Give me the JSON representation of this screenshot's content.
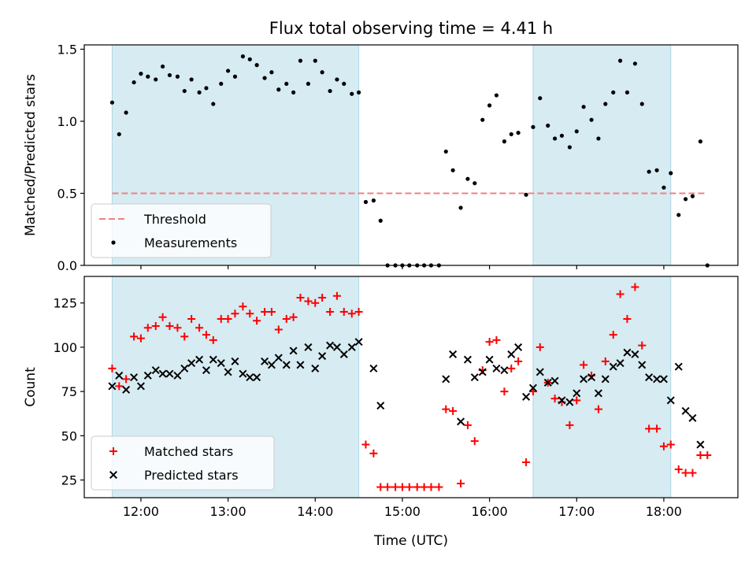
{
  "chart_data": {
    "title": "Flux total observing time = 4.41 h",
    "x_axis": {
      "label": "Time (UTC)",
      "range_hours": [
        11.35,
        18.85
      ],
      "ticks": [
        {
          "value": 12,
          "label": "12:00"
        },
        {
          "value": 13,
          "label": "13:00"
        },
        {
          "value": 14,
          "label": "14:00"
        },
        {
          "value": 15,
          "label": "15:00"
        },
        {
          "value": 16,
          "label": "16:00"
        },
        {
          "value": 17,
          "label": "17:00"
        },
        {
          "value": 18,
          "label": "18:00"
        }
      ]
    },
    "observing_windows": [
      [
        11.67,
        14.5
      ],
      [
        16.5,
        18.08
      ]
    ],
    "colors": {
      "window": "#add8e6",
      "threshold": "#f08080",
      "measurements": "#000000",
      "matched": "#ff0000",
      "predicted": "#000000"
    },
    "panels": [
      {
        "type": "scatter",
        "ylabel": "Matched/Predicted stars",
        "ylim": [
          0,
          1.53
        ],
        "yticks": [
          {
            "value": 0,
            "label": "0.0"
          },
          {
            "value": 0.5,
            "label": "0.5"
          },
          {
            "value": 1.0,
            "label": "1.0"
          },
          {
            "value": 1.5,
            "label": "1.5"
          }
        ],
        "legend": {
          "position": "lower-left",
          "entries": [
            "Threshold",
            "Measurements"
          ]
        },
        "threshold": {
          "name": "Threshold",
          "y": 0.5,
          "x_range": [
            11.67,
            18.5
          ]
        },
        "series": [
          {
            "name": "Measurements",
            "marker": "dot",
            "x": [
              11.67,
              11.75,
              11.83,
              11.92,
              12.0,
              12.08,
              12.17,
              12.25,
              12.33,
              12.42,
              12.5,
              12.58,
              12.67,
              12.75,
              12.83,
              12.92,
              13.0,
              13.08,
              13.17,
              13.25,
              13.33,
              13.42,
              13.5,
              13.58,
              13.67,
              13.75,
              13.83,
              13.92,
              14.0,
              14.08,
              14.17,
              14.25,
              14.33,
              14.42,
              14.5,
              14.58,
              14.67,
              14.75,
              14.83,
              14.92,
              15.0,
              15.08,
              15.17,
              15.25,
              15.33,
              15.42,
              15.5,
              15.58,
              15.67,
              15.75,
              15.83,
              15.92,
              16.0,
              16.08,
              16.17,
              16.25,
              16.33,
              16.42,
              16.5,
              16.58,
              16.67,
              16.75,
              16.83,
              16.92,
              17.0,
              17.08,
              17.17,
              17.25,
              17.33,
              17.42,
              17.5,
              17.58,
              17.67,
              17.75,
              17.83,
              17.92,
              18.0,
              18.08,
              18.17,
              18.25,
              18.33,
              18.42,
              18.5
            ],
            "y": [
              1.13,
              0.91,
              1.06,
              1.27,
              1.33,
              1.31,
              1.29,
              1.38,
              1.32,
              1.31,
              1.21,
              1.29,
              1.2,
              1.23,
              1.12,
              1.26,
              1.35,
              1.31,
              1.45,
              1.43,
              1.39,
              1.3,
              1.34,
              1.22,
              1.26,
              1.2,
              1.42,
              1.26,
              1.42,
              1.34,
              1.21,
              1.29,
              1.26,
              1.19,
              1.2,
              0.44,
              0.45,
              0.31,
              0.0,
              0.0,
              0.0,
              0.0,
              0.0,
              0.0,
              0.0,
              0.0,
              0.79,
              0.66,
              0.4,
              0.6,
              0.57,
              1.01,
              1.11,
              1.18,
              0.86,
              0.91,
              0.92,
              0.49,
              0.96,
              1.16,
              0.97,
              0.88,
              0.9,
              0.82,
              0.93,
              1.1,
              1.01,
              0.88,
              1.12,
              1.2,
              1.42,
              1.2,
              1.4,
              1.12,
              0.65,
              0.66,
              0.54,
              0.64,
              0.35,
              0.46,
              0.48,
              0.86,
              0.0
            ]
          }
        ]
      },
      {
        "type": "scatter",
        "ylabel": "Count",
        "ylim": [
          15,
          140
        ],
        "yticks": [
          {
            "value": 25,
            "label": "25"
          },
          {
            "value": 50,
            "label": "50"
          },
          {
            "value": 75,
            "label": "75"
          },
          {
            "value": 100,
            "label": "100"
          },
          {
            "value": 125,
            "label": "125"
          }
        ],
        "legend": {
          "position": "lower-left",
          "entries": [
            "Matched stars",
            "Predicted stars"
          ]
        },
        "series": [
          {
            "name": "Matched stars",
            "marker": "plus",
            "x": [
              11.67,
              11.75,
              11.83,
              11.92,
              12.0,
              12.08,
              12.17,
              12.25,
              12.33,
              12.42,
              12.5,
              12.58,
              12.67,
              12.75,
              12.83,
              12.92,
              13.0,
              13.08,
              13.17,
              13.25,
              13.33,
              13.42,
              13.5,
              13.58,
              13.67,
              13.75,
              13.83,
              13.92,
              14.0,
              14.08,
              14.17,
              14.25,
              14.33,
              14.42,
              14.5,
              14.58,
              14.67,
              14.75,
              14.83,
              14.92,
              15.0,
              15.08,
              15.17,
              15.25,
              15.33,
              15.42,
              15.5,
              15.58,
              15.67,
              15.75,
              15.83,
              15.92,
              16.0,
              16.08,
              16.17,
              16.25,
              16.33,
              16.42,
              16.5,
              16.58,
              16.67,
              16.75,
              16.83,
              16.92,
              17.0,
              17.08,
              17.17,
              17.25,
              17.33,
              17.42,
              17.5,
              17.58,
              17.67,
              17.75,
              17.83,
              17.92,
              18.0,
              18.08,
              18.17,
              18.25,
              18.33,
              18.42,
              18.5
            ],
            "y": [
              88,
              78,
              82,
              106,
              105,
              111,
              112,
              117,
              112,
              111,
              106,
              116,
              111,
              107,
              104,
              116,
              116,
              119,
              123,
              119,
              115,
              120,
              120,
              110,
              116,
              117,
              128,
              126,
              125,
              128,
              120,
              129,
              120,
              119,
              120,
              45,
              40,
              21,
              21,
              21,
              21,
              21,
              21,
              21,
              21,
              21,
              65,
              64,
              23,
              56,
              47,
              87,
              103,
              104,
              75,
              88,
              92,
              35,
              75,
              100,
              80,
              71,
              69,
              56,
              70,
              90,
              84,
              65,
              92,
              107,
              130,
              116,
              134,
              101,
              54,
              54,
              44,
              45,
              31,
              29,
              29,
              39,
              39
            ]
          },
          {
            "name": "Predicted stars",
            "marker": "x",
            "x": [
              11.67,
              11.75,
              11.83,
              11.92,
              12.0,
              12.08,
              12.17,
              12.25,
              12.33,
              12.42,
              12.5,
              12.58,
              12.67,
              12.75,
              12.83,
              12.92,
              13.0,
              13.08,
              13.17,
              13.25,
              13.33,
              13.42,
              13.5,
              13.58,
              13.67,
              13.75,
              13.83,
              13.92,
              14.0,
              14.08,
              14.17,
              14.25,
              14.33,
              14.42,
              14.5,
              14.67,
              14.75,
              15.5,
              15.58,
              15.67,
              15.75,
              15.83,
              15.92,
              16.0,
              16.08,
              16.17,
              16.25,
              16.33,
              16.42,
              16.5,
              16.58,
              16.67,
              16.75,
              16.83,
              16.92,
              17.0,
              17.08,
              17.17,
              17.25,
              17.33,
              17.42,
              17.5,
              17.58,
              17.67,
              17.75,
              17.83,
              17.92,
              18.0,
              18.08,
              18.17,
              18.25,
              18.33,
              18.42
            ],
            "y": [
              78,
              84,
              76,
              83,
              78,
              84,
              87,
              85,
              85,
              84,
              88,
              91,
              93,
              87,
              93,
              91,
              86,
              92,
              85,
              83,
              83,
              92,
              90,
              94,
              90,
              98,
              90,
              100,
              88,
              95,
              101,
              100,
              96,
              100,
              103,
              88,
              67,
              82,
              96,
              58,
              93,
              83,
              86,
              93,
              88,
              87,
              96,
              100,
              72,
              77,
              86,
              80,
              81,
              70,
              69,
              74,
              82,
              83,
              74,
              82,
              89,
              91,
              97,
              96,
              90,
              83,
              82,
              82,
              70,
              89,
              64,
              60,
              45
            ]
          }
        ]
      }
    ]
  }
}
